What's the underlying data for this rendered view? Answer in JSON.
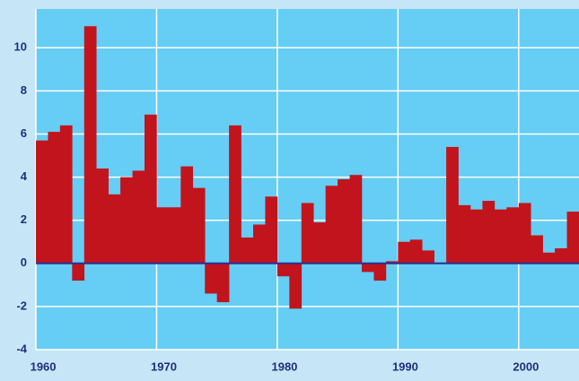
{
  "chart_data": {
    "type": "bar",
    "x": [
      1960,
      1961,
      1962,
      1963,
      1964,
      1965,
      1966,
      1967,
      1968,
      1969,
      1970,
      1971,
      1972,
      1973,
      1974,
      1975,
      1976,
      1977,
      1978,
      1979,
      1980,
      1981,
      1982,
      1983,
      1984,
      1985,
      1986,
      1987,
      1988,
      1989,
      1990,
      1991,
      1992,
      1993,
      1994,
      1995,
      1996,
      1997,
      1998,
      1999,
      2000,
      2001,
      2002,
      2003,
      2004
    ],
    "values": [
      5.7,
      6.1,
      6.4,
      -0.8,
      11.0,
      4.4,
      3.2,
      4.0,
      4.3,
      6.9,
      2.6,
      2.6,
      4.5,
      3.5,
      -1.4,
      -1.8,
      6.4,
      1.2,
      1.8,
      3.1,
      -0.6,
      -2.1,
      2.8,
      1.9,
      3.6,
      3.9,
      4.1,
      -0.4,
      -0.8,
      0.1,
      1.0,
      1.1,
      0.6,
      0.0,
      5.4,
      2.7,
      2.5,
      2.9,
      2.5,
      2.6,
      2.8,
      1.3,
      0.5,
      0.7,
      2.4
    ],
    "color": "#c1141d",
    "xlim": [
      1960,
      2005
    ],
    "xticks": [
      1960,
      1970,
      1980,
      1990,
      2000
    ],
    "ylim": [
      -4,
      11.8
    ],
    "yticks": [
      -4,
      -2,
      0,
      2,
      4,
      6,
      8,
      10
    ],
    "grid": true
  }
}
